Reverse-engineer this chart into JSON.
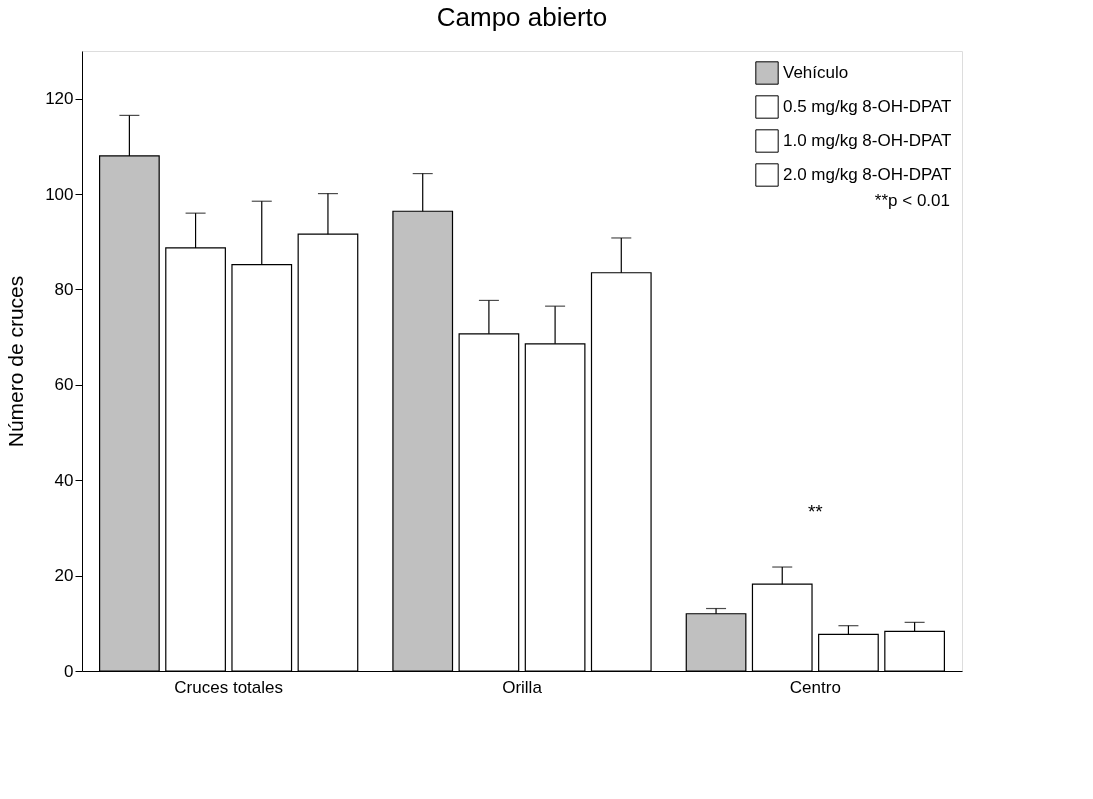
{
  "chart_data": {
    "type": "bar",
    "title": "Campo abierto",
    "ylabel": "Número de cruces",
    "categories": [
      "Cruces totales",
      "Orilla",
      "Centro"
    ],
    "series": [
      {
        "name": "Vehículo",
        "color": "#c0c0c0",
        "values": [
          108.0,
          96.4,
          12.0
        ],
        "errors": [
          [
            108.0,
            116.5
          ],
          [
            96.4,
            104.3
          ],
          [
            12.0,
            13.1
          ]
        ]
      },
      {
        "name": "0.5 mg/kg 8-OH-DPAT",
        "color": "#ffffff",
        "values": [
          88.7,
          70.7,
          18.2
        ],
        "errors": [
          [
            88.7,
            96.0
          ],
          [
            70.7,
            77.7
          ],
          [
            18.2,
            21.8
          ]
        ]
      },
      {
        "name": "1.0 mg/kg 8-OH-DPAT",
        "color": "#ffffff",
        "values": [
          85.2,
          68.6,
          7.7
        ],
        "errors": [
          [
            85.2,
            98.5
          ],
          [
            68.6,
            76.5
          ],
          [
            7.7,
            9.5
          ]
        ]
      },
      {
        "name": "2.0 mg/kg 8-OH-DPAT",
        "color": "#ffffff",
        "values": [
          91.6,
          83.5,
          8.3
        ],
        "errors": [
          [
            91.6,
            100.1
          ],
          [
            83.5,
            90.8
          ],
          [
            8.3,
            10.2
          ]
        ]
      }
    ],
    "ylim": [
      0,
      130
    ],
    "yticks": [
      0,
      20,
      40,
      60,
      80,
      100,
      120
    ],
    "grid": false,
    "legend": "top right",
    "annotations": [
      "**",
      "**p < 0.01"
    ]
  }
}
